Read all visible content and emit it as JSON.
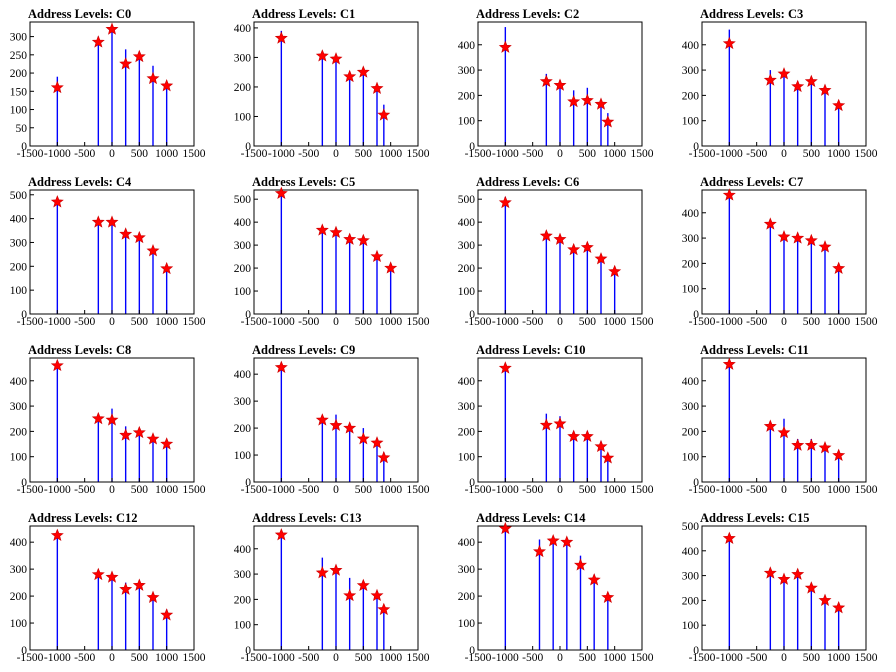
{
  "figure": {
    "background": "#ffffff",
    "spike_color": "#0000ff",
    "marker_color": "#ff0000",
    "marker_shape": "star"
  },
  "chart_data": [
    {
      "type": "bar",
      "title": "Address Levels: C0",
      "xlim": [
        -1500,
        1500
      ],
      "ylim": [
        0,
        340
      ],
      "xticks": [
        -1500,
        -1000,
        -500,
        0,
        500,
        1000,
        1500
      ],
      "xtick_labels": [
        "-1500",
        "-1000",
        "-500",
        "0",
        "500",
        "1000",
        "1500"
      ],
      "yticks": [
        0,
        50,
        100,
        150,
        200,
        250,
        300
      ],
      "ytick_labels": [
        "0",
        "50",
        "100",
        "150",
        "200",
        "250",
        "300"
      ],
      "spikes": {
        "x": [
          -1000,
          -250,
          0,
          250,
          500,
          750,
          1000
        ],
        "values": [
          190,
          300,
          330,
          265,
          255,
          220,
          160
        ]
      },
      "peaks": {
        "x": [
          -1000,
          -250,
          0,
          250,
          500,
          750,
          1000
        ],
        "values": [
          160,
          285,
          320,
          225,
          245,
          185,
          165
        ]
      }
    },
    {
      "type": "bar",
      "title": "Address Levels: C1",
      "xlim": [
        -1500,
        1500
      ],
      "ylim": [
        0,
        420
      ],
      "xticks": [
        -1500,
        -1000,
        -500,
        0,
        500,
        1000,
        1500
      ],
      "xtick_labels": [
        "-1500",
        "-1000",
        "-500",
        "0",
        "500",
        "1000",
        "1500"
      ],
      "yticks": [
        0,
        100,
        200,
        300,
        400
      ],
      "ytick_labels": [
        "0",
        "100",
        "200",
        "300",
        "400"
      ],
      "spikes": {
        "x": [
          -1000,
          -250,
          0,
          250,
          500,
          750,
          875
        ],
        "values": [
          390,
          320,
          290,
          230,
          265,
          200,
          140
        ]
      },
      "peaks": {
        "x": [
          -1000,
          -250,
          0,
          250,
          500,
          750,
          875
        ],
        "values": [
          365,
          305,
          295,
          235,
          250,
          195,
          105
        ]
      }
    },
    {
      "type": "bar",
      "title": "Address Levels: C2",
      "xlim": [
        -1500,
        1500
      ],
      "ylim": [
        0,
        490
      ],
      "xticks": [
        -1500,
        -1000,
        -500,
        0,
        500,
        1000,
        1500
      ],
      "xtick_labels": [
        "-1500",
        "-1000",
        "-500",
        "0",
        "500",
        "1000",
        "1500"
      ],
      "yticks": [
        0,
        100,
        200,
        300,
        400
      ],
      "ytick_labels": [
        "0",
        "100",
        "200",
        "300",
        "400"
      ],
      "spikes": {
        "x": [
          -1000,
          -250,
          0,
          250,
          500,
          750,
          875
        ],
        "values": [
          470,
          285,
          260,
          220,
          230,
          170,
          130
        ]
      },
      "peaks": {
        "x": [
          -1000,
          -250,
          0,
          250,
          500,
          750,
          875
        ],
        "values": [
          390,
          255,
          240,
          175,
          180,
          165,
          95
        ]
      }
    },
    {
      "type": "bar",
      "title": "Address Levels: C3",
      "xlim": [
        -1500,
        1500
      ],
      "ylim": [
        0,
        490
      ],
      "xticks": [
        -1500,
        -1000,
        -500,
        0,
        500,
        1000,
        1500
      ],
      "xtick_labels": [
        "-1500",
        "-1000",
        "-500",
        "0",
        "500",
        "1000",
        "1500"
      ],
      "yticks": [
        0,
        100,
        200,
        300,
        400
      ],
      "ytick_labels": [
        "0",
        "100",
        "200",
        "300",
        "400"
      ],
      "spikes": {
        "x": [
          -1000,
          -250,
          0,
          250,
          500,
          750,
          1000
        ],
        "values": [
          460,
          300,
          290,
          250,
          260,
          210,
          170
        ]
      },
      "peaks": {
        "x": [
          -1000,
          -250,
          0,
          250,
          500,
          750,
          1000
        ],
        "values": [
          405,
          260,
          285,
          235,
          255,
          220,
          160
        ]
      }
    },
    {
      "type": "bar",
      "title": "Address Levels: C4",
      "xlim": [
        -1500,
        1500
      ],
      "ylim": [
        0,
        520
      ],
      "xticks": [
        -1500,
        -1000,
        -500,
        0,
        500,
        1000,
        1500
      ],
      "xtick_labels": [
        "-1500",
        "-1000",
        "-500",
        "0",
        "500",
        "1000",
        "1500"
      ],
      "yticks": [
        0,
        100,
        200,
        300,
        400,
        500
      ],
      "ytick_labels": [
        "0",
        "100",
        "200",
        "300",
        "400",
        "500"
      ],
      "spikes": {
        "x": [
          -1000,
          -250,
          0,
          250,
          500,
          750,
          1000
        ],
        "values": [
          490,
          400,
          390,
          345,
          335,
          280,
          200
        ]
      },
      "peaks": {
        "x": [
          -1000,
          -250,
          0,
          250,
          500,
          750,
          1000
        ],
        "values": [
          470,
          385,
          385,
          335,
          320,
          265,
          190
        ]
      }
    },
    {
      "type": "bar",
      "title": "Address Levels: C5",
      "xlim": [
        -1500,
        1500
      ],
      "ylim": [
        0,
        540
      ],
      "xticks": [
        -1500,
        -1000,
        -500,
        0,
        500,
        1000,
        1500
      ],
      "xtick_labels": [
        "-1500",
        "-1000",
        "-500",
        "0",
        "500",
        "1000",
        "1500"
      ],
      "yticks": [
        0,
        100,
        200,
        300,
        400,
        500
      ],
      "ytick_labels": [
        "0",
        "100",
        "200",
        "300",
        "400",
        "500"
      ],
      "spikes": {
        "x": [
          -1000,
          -250,
          0,
          250,
          500,
          750,
          1000
        ],
        "values": [
          530,
          380,
          370,
          335,
          330,
          265,
          210
        ]
      },
      "peaks": {
        "x": [
          -1000,
          -250,
          0,
          250,
          500,
          750,
          1000
        ],
        "values": [
          525,
          365,
          355,
          325,
          320,
          250,
          200
        ]
      }
    },
    {
      "type": "bar",
      "title": "Address Levels: C6",
      "xlim": [
        -1500,
        1500
      ],
      "ylim": [
        0,
        540
      ],
      "xticks": [
        -1500,
        -1000,
        -500,
        0,
        500,
        1000,
        1500
      ],
      "xtick_labels": [
        "-1500",
        "-1000",
        "-500",
        "0",
        "500",
        "1000",
        "1500"
      ],
      "yticks": [
        0,
        100,
        200,
        300,
        400,
        500
      ],
      "ytick_labels": [
        "0",
        "100",
        "200",
        "300",
        "400",
        "500"
      ],
      "spikes": {
        "x": [
          -1000,
          -250,
          0,
          250,
          500,
          750,
          1000
        ],
        "values": [
          510,
          350,
          330,
          300,
          300,
          250,
          200
        ]
      },
      "peaks": {
        "x": [
          -1000,
          -250,
          0,
          250,
          500,
          750,
          1000
        ],
        "values": [
          485,
          340,
          325,
          280,
          290,
          240,
          185
        ]
      }
    },
    {
      "type": "bar",
      "title": "Address Levels: C7",
      "xlim": [
        -1500,
        1500
      ],
      "ylim": [
        0,
        490
      ],
      "xticks": [
        -1500,
        -1000,
        -500,
        0,
        500,
        1000,
        1500
      ],
      "xtick_labels": [
        "-1500",
        "-1000",
        "-500",
        "0",
        "500",
        "1000",
        "1500"
      ],
      "yticks": [
        0,
        100,
        200,
        300,
        400
      ],
      "ytick_labels": [
        "0",
        "100",
        "200",
        "300",
        "400"
      ],
      "spikes": {
        "x": [
          -1000,
          -250,
          0,
          250,
          500,
          750,
          1000
        ],
        "values": [
          480,
          370,
          320,
          310,
          300,
          280,
          190
        ]
      },
      "peaks": {
        "x": [
          -1000,
          -250,
          0,
          250,
          500,
          750,
          1000
        ],
        "values": [
          470,
          355,
          305,
          300,
          290,
          265,
          180
        ]
      }
    },
    {
      "type": "bar",
      "title": "Address Levels: C8",
      "xlim": [
        -1500,
        1500
      ],
      "ylim": [
        0,
        490
      ],
      "xticks": [
        -1500,
        -1000,
        -500,
        0,
        500,
        1000,
        1500
      ],
      "xtick_labels": [
        "-1500",
        "-1000",
        "-500",
        "0",
        "500",
        "1000",
        "1500"
      ],
      "yticks": [
        0,
        100,
        200,
        300,
        400
      ],
      "ytick_labels": [
        "0",
        "100",
        "200",
        "300",
        "400"
      ],
      "spikes": {
        "x": [
          -1000,
          -250,
          0,
          250,
          500,
          750,
          1000
        ],
        "values": [
          475,
          270,
          290,
          220,
          210,
          185,
          160
        ]
      },
      "peaks": {
        "x": [
          -1000,
          -250,
          0,
          250,
          500,
          750,
          1000
        ],
        "values": [
          460,
          250,
          245,
          185,
          195,
          170,
          150
        ]
      }
    },
    {
      "type": "bar",
      "title": "Address Levels: C9",
      "xlim": [
        -1500,
        1500
      ],
      "ylim": [
        0,
        460
      ],
      "xticks": [
        -1500,
        -1000,
        -500,
        0,
        500,
        1000,
        1500
      ],
      "xtick_labels": [
        "-1500",
        "-1000",
        "-500",
        "0",
        "500",
        "1000",
        "1500"
      ],
      "yticks": [
        0,
        100,
        200,
        300,
        400
      ],
      "ytick_labels": [
        "0",
        "100",
        "200",
        "300",
        "400"
      ],
      "spikes": {
        "x": [
          -1000,
          -250,
          0,
          250,
          500,
          750,
          875
        ],
        "values": [
          430,
          240,
          250,
          210,
          200,
          150,
          110
        ]
      },
      "peaks": {
        "x": [
          -1000,
          -250,
          0,
          250,
          500,
          750,
          875
        ],
        "values": [
          425,
          230,
          210,
          200,
          160,
          145,
          90
        ]
      }
    },
    {
      "type": "bar",
      "title": "Address Levels: C10",
      "xlim": [
        -1500,
        1500
      ],
      "ylim": [
        0,
        490
      ],
      "xticks": [
        -1500,
        -1000,
        -500,
        0,
        500,
        1000,
        1500
      ],
      "xtick_labels": [
        "-1500",
        "-1000",
        "-500",
        "0",
        "500",
        "1000",
        "1500"
      ],
      "yticks": [
        0,
        100,
        200,
        300,
        400
      ],
      "ytick_labels": [
        "0",
        "100",
        "200",
        "300",
        "400"
      ],
      "spikes": {
        "x": [
          -1000,
          -250,
          0,
          250,
          500,
          750,
          875
        ],
        "values": [
          460,
          270,
          260,
          200,
          200,
          160,
          110
        ]
      },
      "peaks": {
        "x": [
          -1000,
          -250,
          0,
          250,
          500,
          750,
          875
        ],
        "values": [
          450,
          225,
          230,
          180,
          180,
          140,
          95
        ]
      }
    },
    {
      "type": "bar",
      "title": "Address Levels: C11",
      "xlim": [
        -1500,
        1500
      ],
      "ylim": [
        0,
        490
      ],
      "xticks": [
        -1500,
        -1000,
        -500,
        0,
        500,
        1000,
        1500
      ],
      "xtick_labels": [
        "-1500",
        "-1000",
        "-500",
        "0",
        "500",
        "1000",
        "1500"
      ],
      "yticks": [
        0,
        100,
        200,
        300,
        400
      ],
      "ytick_labels": [
        "0",
        "100",
        "200",
        "300",
        "400"
      ],
      "spikes": {
        "x": [
          -1000,
          -250,
          0,
          250,
          500,
          750,
          1000
        ],
        "values": [
          470,
          240,
          250,
          170,
          170,
          150,
          120
        ]
      },
      "peaks": {
        "x": [
          -1000,
          -250,
          0,
          250,
          500,
          750,
          1000
        ],
        "values": [
          465,
          220,
          195,
          145,
          145,
          135,
          105
        ]
      }
    },
    {
      "type": "bar",
      "title": "Address Levels: C12",
      "xlim": [
        -1500,
        1500
      ],
      "ylim": [
        0,
        460
      ],
      "xticks": [
        -1500,
        -1000,
        -500,
        0,
        500,
        1000,
        1500
      ],
      "xtick_labels": [
        "-1500",
        "-1000",
        "-500",
        "0",
        "500",
        "1000",
        "1500"
      ],
      "yticks": [
        0,
        100,
        200,
        300,
        400
      ],
      "ytick_labels": [
        "0",
        "100",
        "200",
        "300",
        "400"
      ],
      "spikes": {
        "x": [
          -1000,
          -250,
          0,
          250,
          500,
          750,
          1000
        ],
        "values": [
          440,
          290,
          280,
          250,
          250,
          210,
          150
        ]
      },
      "peaks": {
        "x": [
          -1000,
          -250,
          0,
          250,
          500,
          750,
          1000
        ],
        "values": [
          425,
          280,
          270,
          225,
          240,
          195,
          130
        ]
      }
    },
    {
      "type": "bar",
      "title": "Address Levels: C13",
      "xlim": [
        -1500,
        1500
      ],
      "ylim": [
        0,
        490
      ],
      "xticks": [
        -1500,
        -1000,
        -500,
        0,
        500,
        1000,
        1500
      ],
      "xtick_labels": [
        "-1500",
        "-1000",
        "-500",
        "0",
        "500",
        "1000",
        "1500"
      ],
      "yticks": [
        0,
        100,
        200,
        300,
        400
      ],
      "ytick_labels": [
        "0",
        "100",
        "200",
        "300",
        "400"
      ],
      "spikes": {
        "x": [
          -1000,
          -250,
          0,
          250,
          500,
          750,
          875
        ],
        "values": [
          460,
          365,
          330,
          285,
          270,
          230,
          170
        ]
      },
      "peaks": {
        "x": [
          -1000,
          -250,
          0,
          250,
          500,
          750,
          875
        ],
        "values": [
          455,
          305,
          315,
          215,
          255,
          215,
          160
        ]
      }
    },
    {
      "type": "bar",
      "title": "Address Levels: C14",
      "xlim": [
        -1500,
        1500
      ],
      "ylim": [
        0,
        460
      ],
      "xticks": [
        -1500,
        -1000,
        -500,
        0,
        500,
        1000,
        1500
      ],
      "xtick_labels": [
        "-1500",
        "-1000",
        "-500",
        "0",
        "500",
        "1000",
        "1500"
      ],
      "yticks": [
        0,
        100,
        200,
        300,
        400
      ],
      "ytick_labels": [
        "0",
        "100",
        "200",
        "300",
        "400"
      ],
      "spikes": {
        "x": [
          -1000,
          -375,
          -125,
          125,
          375,
          625,
          875
        ],
        "values": [
          450,
          410,
          400,
          410,
          350,
          280,
          200
        ]
      },
      "peaks": {
        "x": [
          -1000,
          -375,
          -125,
          125,
          375,
          625,
          875
        ],
        "values": [
          450,
          365,
          405,
          400,
          315,
          260,
          195
        ]
      }
    },
    {
      "type": "bar",
      "title": "Address Levels: C15",
      "xlim": [
        -1500,
        1500
      ],
      "ylim": [
        0,
        500
      ],
      "xticks": [
        -1500,
        -1000,
        -500,
        0,
        500,
        1000,
        1500
      ],
      "xtick_labels": [
        "-1500",
        "-1000",
        "-500",
        "0",
        "500",
        "1000",
        "1500"
      ],
      "yticks": [
        0,
        100,
        200,
        300,
        400,
        500
      ],
      "ytick_labels": [
        "0",
        "100",
        "200",
        "300",
        "400",
        "500"
      ],
      "spikes": {
        "x": [
          -1000,
          -250,
          0,
          250,
          500,
          750,
          1000
        ],
        "values": [
          460,
          320,
          300,
          310,
          260,
          210,
          180
        ]
      },
      "peaks": {
        "x": [
          -1000,
          -250,
          0,
          250,
          500,
          750,
          1000
        ],
        "values": [
          450,
          310,
          285,
          305,
          250,
          200,
          170
        ]
      }
    }
  ]
}
